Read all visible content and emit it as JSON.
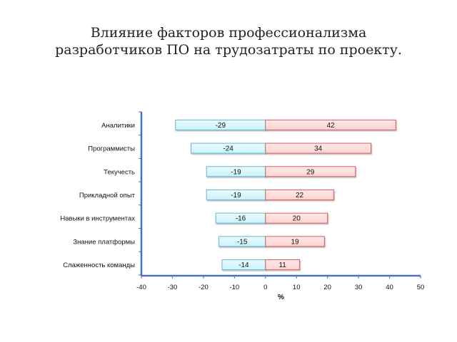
{
  "title": {
    "line1": "Влияние факторов профессионализма",
    "line2": "разработчиков ПО на трудозатраты по проекту."
  },
  "chart_data": {
    "type": "bar",
    "orientation": "horizontal",
    "categories": [
      "Аналитики",
      "Программисты",
      "Текучесть",
      "Прикладной опыт",
      "Навыки в инструментах",
      "Знание платформы",
      "Слаженность команды"
    ],
    "series": [
      {
        "values": [
          -29,
          -24,
          -19,
          -19,
          -16,
          -15,
          -14
        ]
      },
      {
        "values": [
          42,
          34,
          29,
          22,
          20,
          19,
          11
        ]
      }
    ],
    "xlabel": "%",
    "xlim": [
      -40,
      50
    ],
    "xticks": [
      -40,
      -30,
      -20,
      -10,
      0,
      10,
      20,
      30,
      40,
      50
    ],
    "grid": false,
    "colors": {
      "negative_fill": "#ccf2fb",
      "negative_stroke": "#62b7d3",
      "positive_fill": "#ffd3d3",
      "positive_stroke": "#de5b5b",
      "axis": "#4a70c4"
    }
  }
}
